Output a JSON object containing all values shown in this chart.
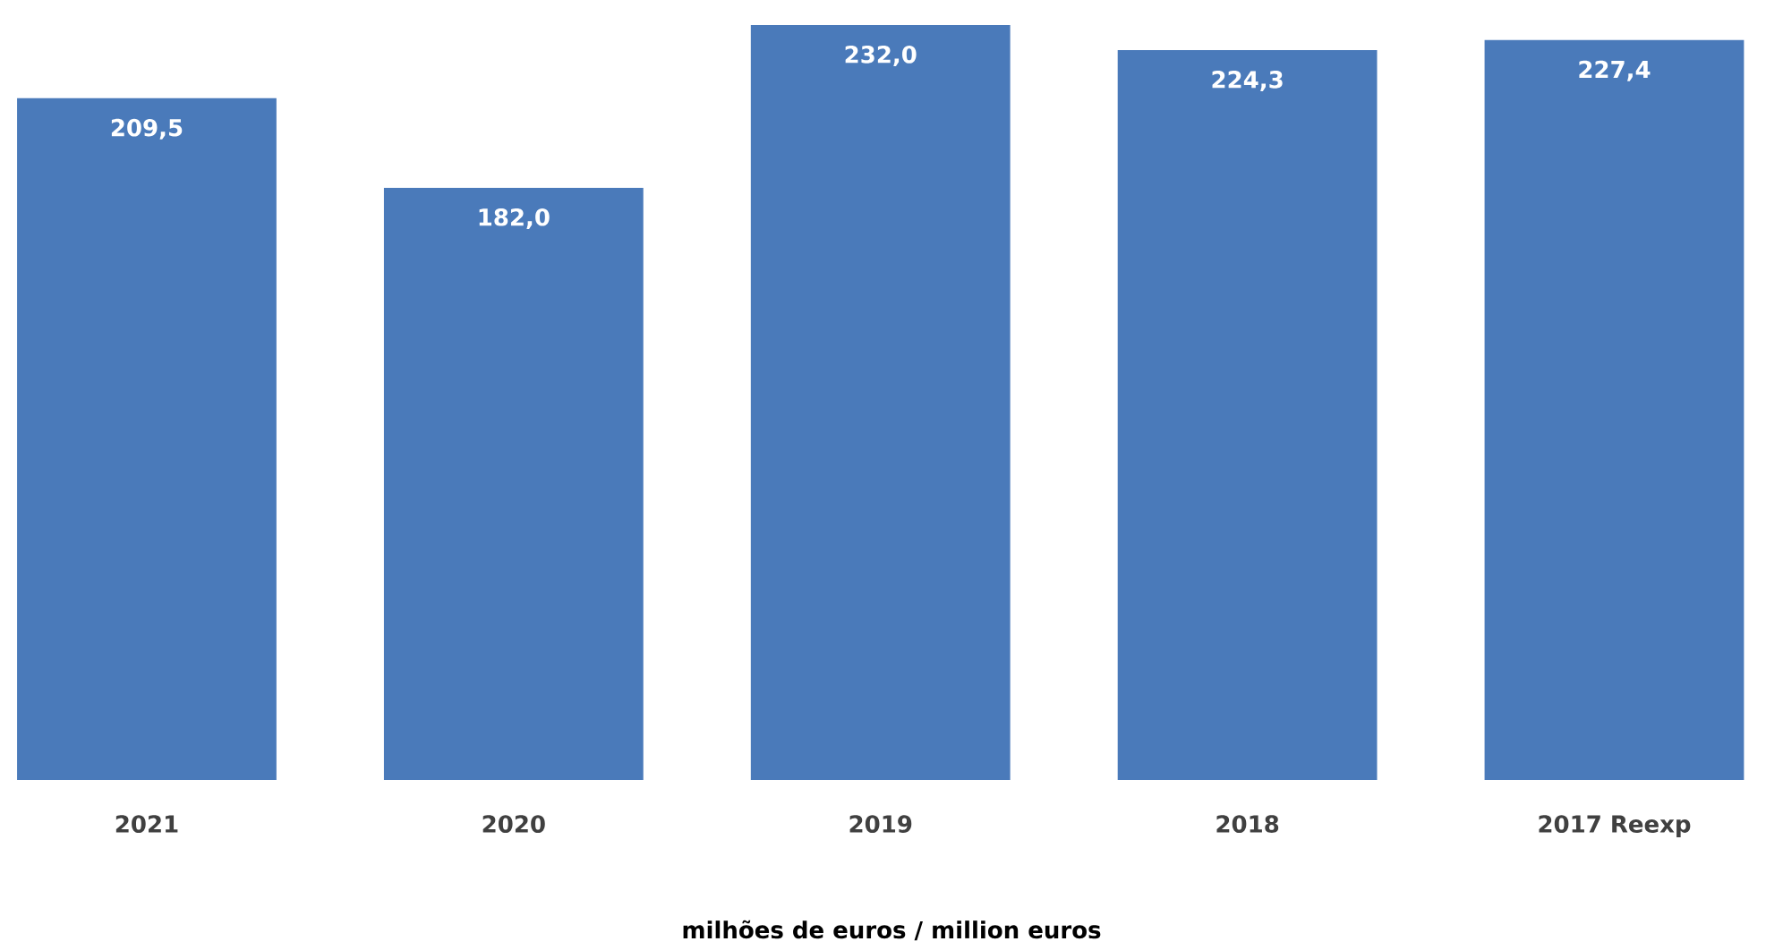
{
  "chart_data": {
    "type": "bar",
    "categories": [
      "2021",
      "2020",
      "2019",
      "2018",
      "2017 Reexp"
    ],
    "values": [
      209.5,
      182.0,
      232.0,
      224.3,
      227.4
    ],
    "value_labels": [
      "209,5",
      "182,0",
      "232,0",
      "224,3",
      "227,4"
    ],
    "color": "#4a7aba",
    "xlabel": "milhões de euros / million euros"
  }
}
